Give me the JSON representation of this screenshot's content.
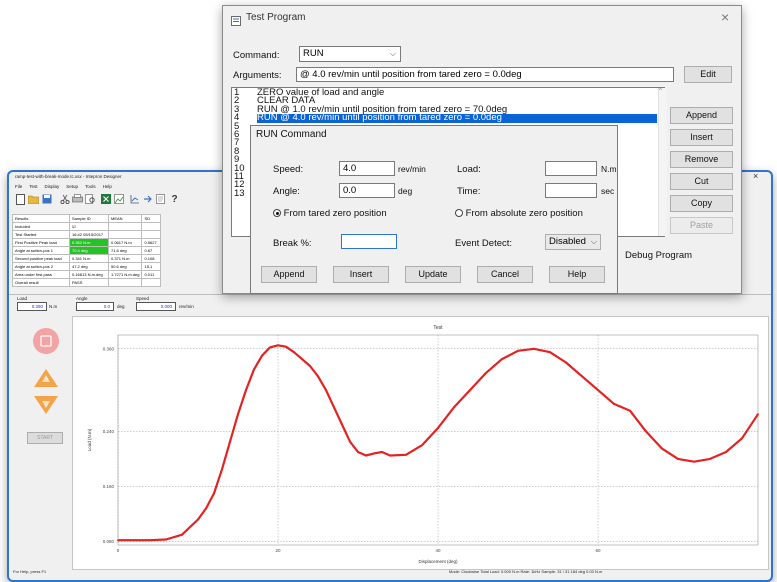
{
  "mainwin": {
    "title": "ramp-test-with-break-mode.tc.xsx - Intepron Designer",
    "menu": [
      "File",
      "Test",
      "Display",
      "Setup",
      "Tools",
      "Help"
    ],
    "close_glyph": "×",
    "results_header": [
      "Results",
      "Sample ID",
      "MEAN",
      "SD"
    ],
    "results_rows": [
      [
        "Included",
        "☑",
        "",
        ""
      ],
      [
        "Test Started",
        "16:42 05/15/2017",
        "",
        ""
      ],
      [
        "First Positive Peak load",
        "0.352 N.m",
        "0.0617 N.m",
        "0.5627"
      ],
      [
        "Angle at switch-pos 1",
        "70.4 deg",
        "71.6 deg",
        "0.67"
      ],
      [
        "Second positive peak load",
        "0.341 N.m",
        "0.371 N.m",
        "0.108"
      ],
      [
        "Angle at switch-pos 2",
        "47.2 deg",
        "50.6 deg",
        "15.1"
      ],
      [
        "Area under first pass",
        "0.16813 N.m.deg",
        "1.7271 N.m.deg",
        "0.011"
      ],
      [
        "Overall result",
        "PASS",
        "",
        ""
      ]
    ],
    "readouts": [
      {
        "label": "Load",
        "value": "0.390",
        "unit": "N.m"
      },
      {
        "label": "Angle",
        "value": "0.0",
        "unit": "deg"
      },
      {
        "label": "Speed",
        "value": "0.000",
        "unit": "rev/min"
      }
    ],
    "start_label": "START",
    "status_left": "For Help, press F1",
    "status_right": "Mode: Clockwise  Total Load: 0.000 N.m  Rate: 1kHz          Sample: 31 / 31  184 deg  0.03 N.m"
  },
  "chart_data": {
    "type": "line",
    "title": "Test",
    "xlabel": "Displacement (deg)",
    "ylabel": "Load (N.m)",
    "xlim": [
      0,
      80
    ],
    "ylim": [
      0.075,
      0.38
    ],
    "xticks": [
      "0",
      "20",
      "40",
      "60"
    ],
    "yticks": [
      "0.080",
      "0.160",
      "0.240",
      "0.360"
    ],
    "grid": true,
    "series": [
      {
        "color": "#e52222",
        "x": [
          0,
          2,
          4,
          6,
          8,
          10,
          11,
          12,
          13,
          14,
          15,
          16,
          17,
          18,
          19,
          20,
          21,
          22,
          23,
          24,
          25,
          26,
          27,
          28,
          29,
          30,
          31,
          32,
          33,
          34,
          36,
          38,
          40,
          42,
          44,
          46,
          48,
          50,
          52,
          54,
          56,
          58,
          60,
          62,
          64,
          66,
          68,
          70,
          72,
          74,
          76,
          78,
          80
        ],
        "y": [
          0.082,
          0.082,
          0.082,
          0.083,
          0.09,
          0.112,
          0.128,
          0.15,
          0.185,
          0.225,
          0.265,
          0.3,
          0.33,
          0.35,
          0.362,
          0.365,
          0.363,
          0.355,
          0.345,
          0.335,
          0.32,
          0.3,
          0.275,
          0.25,
          0.225,
          0.21,
          0.205,
          0.208,
          0.21,
          0.205,
          0.206,
          0.22,
          0.245,
          0.275,
          0.3,
          0.325,
          0.345,
          0.357,
          0.36,
          0.355,
          0.34,
          0.32,
          0.3,
          0.28,
          0.27,
          0.24,
          0.215,
          0.2,
          0.196,
          0.2,
          0.21,
          0.23,
          0.265
        ]
      }
    ]
  },
  "dialog": {
    "title": "Test Program",
    "close_glyph": "×",
    "command_label": "Command:",
    "command_value": "RUN",
    "arguments_label": "Arguments:",
    "arguments_value": "@ 4.0 rev/min until position from tared zero = 0.0deg",
    "edit_label": "Edit",
    "line_numbers": [
      "1",
      "2",
      "3",
      "4",
      "5",
      "6",
      "7",
      "8",
      "9",
      "10",
      "11",
      "12",
      "13"
    ],
    "program_lines": [
      "ZERO value of load and angle",
      "CLEAR DATA",
      "RUN @ 1.0 rev/min until position from tared zero = 70.0deg",
      "RUN @ 4.0 rev/min until position from tared zero = 0.0deg"
    ],
    "side_buttons": [
      "Append",
      "Insert",
      "Remove",
      "Cut",
      "Copy",
      "Paste"
    ],
    "debug_label": "Debug Program"
  },
  "run_command": {
    "title": "RUN Command",
    "speed_label": "Speed:",
    "speed_value": "4.0",
    "speed_unit": "rev/min",
    "angle_label": "Angle:",
    "angle_value": "0.0",
    "angle_unit": "deg",
    "load_label": "Load:",
    "load_unit": "N.m",
    "time_label": "Time:",
    "time_unit": "sec",
    "radio_tared": "From tared zero position",
    "radio_absolute": "From absolute zero position",
    "break_label": "Break %:",
    "event_label": "Event Detect:",
    "event_value": "Disabled",
    "buttons": [
      "Append",
      "Insert",
      "Update",
      "Cancel",
      "Help"
    ]
  },
  "colors": {
    "window_border": "#2f74d0",
    "selection": "#0a64d6",
    "trace": "#e52222",
    "pass_green": "#22c522"
  }
}
